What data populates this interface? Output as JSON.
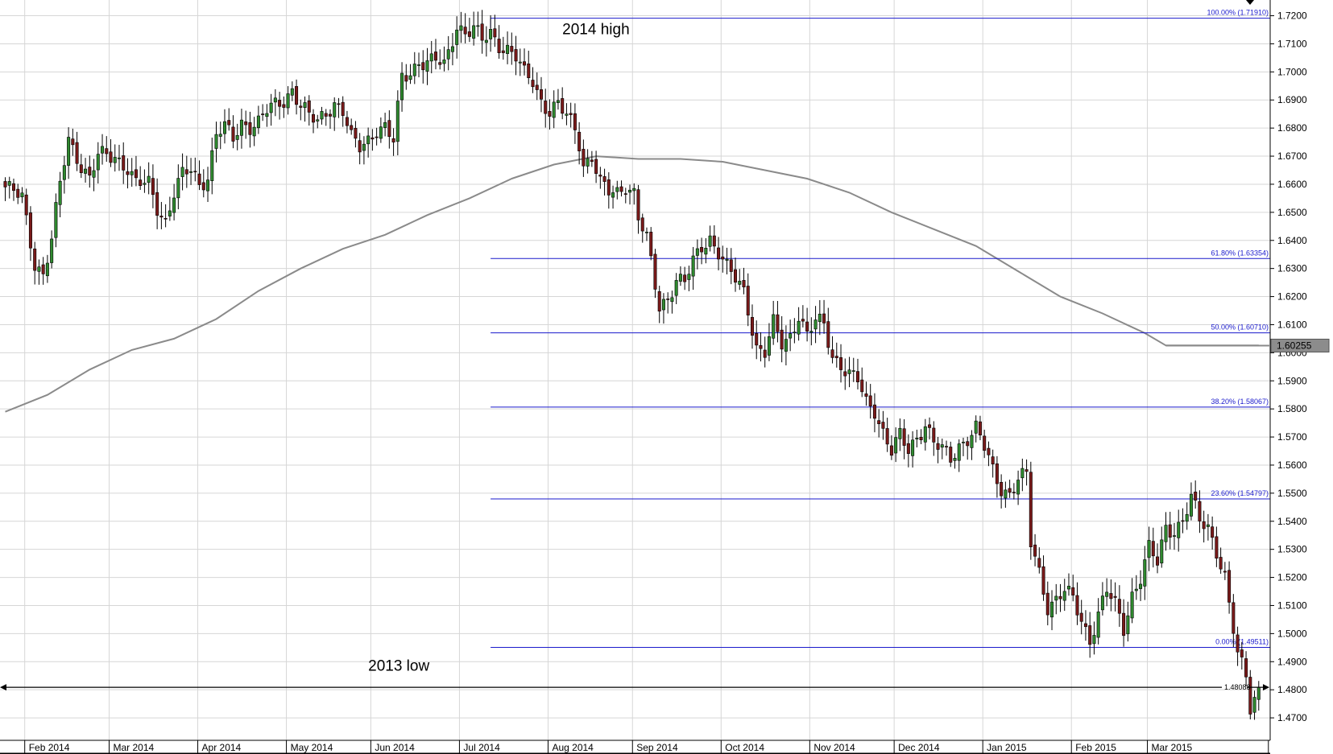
{
  "colors": {
    "bull": "#2f8a2f",
    "bear": "#7a1a1a",
    "fib": "#1a1acc",
    "ma": "#8a8a8a",
    "grid": "#d6d6d6",
    "text": "#000000"
  },
  "chart_data": {
    "type": "candlestick",
    "instrument_price_current": "1.60255",
    "ylim": [
      1.462,
      1.7256
    ],
    "y_ticks": [
      "1.4700",
      "1.4800",
      "1.4900",
      "1.5000",
      "1.5100",
      "1.5200",
      "1.5300",
      "1.5400",
      "1.5500",
      "1.5600",
      "1.5700",
      "1.5800",
      "1.5900",
      "1.6000",
      "1.6100",
      "1.6200",
      "1.6300",
      "1.6400",
      "1.6500",
      "1.6600",
      "1.6700",
      "1.6800",
      "1.6900",
      "1.7000",
      "1.7100",
      "1.7200"
    ],
    "months": [
      {
        "label": "Feb 2014",
        "index": 5
      },
      {
        "label": "Mar 2014",
        "index": 25
      },
      {
        "label": "Apr 2014",
        "index": 46
      },
      {
        "label": "May 2014",
        "index": 67
      },
      {
        "label": "Jun 2014",
        "index": 87
      },
      {
        "label": "Jul 2014",
        "index": 108
      },
      {
        "label": "Aug 2014",
        "index": 129
      },
      {
        "label": "Sep 2014",
        "index": 149
      },
      {
        "label": "Oct 2014",
        "index": 170
      },
      {
        "label": "Nov 2014",
        "index": 191
      },
      {
        "label": "Dec 2014",
        "index": 211
      },
      {
        "label": "Jan 2015",
        "index": 232
      },
      {
        "label": "Feb 2015",
        "index": 253
      },
      {
        "label": "Mar 2015",
        "index": 271
      }
    ],
    "years": [
      {
        "label": "2014",
        "index": 115
      },
      {
        "label": "2015",
        "index": 264
      }
    ],
    "fib_levels": [
      {
        "label": "100.00% (1.71910)",
        "value": 1.7191
      },
      {
        "label": "61.80% (1.63354)",
        "value": 1.63354
      },
      {
        "label": "50.00% (1.60710)",
        "value": 1.6071
      },
      {
        "label": "38.20% (1.58067)",
        "value": 1.58067
      },
      {
        "label": "23.60% (1.54797)",
        "value": 1.54797
      },
      {
        "label": "0.00% (1.49511)",
        "value": 1.49511
      }
    ],
    "fib_start_index": 115,
    "low_line": {
      "label": "1.48088",
      "value": 1.48088
    },
    "annotations": [
      {
        "text": "2014 high",
        "index": 132,
        "value": 1.7134
      },
      {
        "text": "2013 low",
        "index": 86,
        "value": 1.4868
      }
    ],
    "ma_points": [
      [
        0,
        1.579
      ],
      [
        10,
        1.585
      ],
      [
        20,
        1.594
      ],
      [
        30,
        1.601
      ],
      [
        40,
        1.605
      ],
      [
        50,
        1.612
      ],
      [
        60,
        1.622
      ],
      [
        70,
        1.63
      ],
      [
        80,
        1.637
      ],
      [
        90,
        1.642
      ],
      [
        100,
        1.649
      ],
      [
        110,
        1.655
      ],
      [
        120,
        1.662
      ],
      [
        130,
        1.667
      ],
      [
        140,
        1.67
      ],
      [
        150,
        1.669
      ],
      [
        160,
        1.669
      ],
      [
        170,
        1.668
      ],
      [
        180,
        1.665
      ],
      [
        190,
        1.662
      ],
      [
        200,
        1.657
      ],
      [
        210,
        1.65
      ],
      [
        220,
        1.644
      ],
      [
        230,
        1.638
      ],
      [
        240,
        1.629
      ],
      [
        250,
        1.62
      ],
      [
        260,
        1.614
      ],
      [
        270,
        1.607
      ],
      [
        275,
        1.6026
      ],
      [
        297,
        1.6026
      ]
    ],
    "close_anchors": [
      [
        0,
        1.659
      ],
      [
        4,
        1.655
      ],
      [
        7,
        1.632
      ],
      [
        9,
        1.628
      ],
      [
        11,
        1.64
      ],
      [
        13,
        1.66
      ],
      [
        15,
        1.676
      ],
      [
        18,
        1.667
      ],
      [
        20,
        1.662
      ],
      [
        22,
        1.67
      ],
      [
        26,
        1.67
      ],
      [
        29,
        1.666
      ],
      [
        31,
        1.66
      ],
      [
        34,
        1.66
      ],
      [
        36,
        1.652
      ],
      [
        38,
        1.647
      ],
      [
        40,
        1.657
      ],
      [
        42,
        1.663
      ],
      [
        44,
        1.665
      ],
      [
        46,
        1.66
      ],
      [
        48,
        1.663
      ],
      [
        50,
        1.678
      ],
      [
        52,
        1.68
      ],
      [
        54,
        1.676
      ],
      [
        56,
        1.682
      ],
      [
        58,
        1.681
      ],
      [
        60,
        1.682
      ],
      [
        62,
        1.686
      ],
      [
        64,
        1.688
      ],
      [
        66,
        1.69
      ],
      [
        68,
        1.694
      ],
      [
        70,
        1.688
      ],
      [
        72,
        1.684
      ],
      [
        74,
        1.682
      ],
      [
        76,
        1.686
      ],
      [
        78,
        1.689
      ],
      [
        80,
        1.686
      ],
      [
        82,
        1.676
      ],
      [
        84,
        1.673
      ],
      [
        86,
        1.676
      ],
      [
        88,
        1.68
      ],
      [
        90,
        1.68
      ],
      [
        92,
        1.675
      ],
      [
        94,
        1.698
      ],
      [
        96,
        1.7
      ],
      [
        98,
        1.704
      ],
      [
        100,
        1.703
      ],
      [
        102,
        1.704
      ],
      [
        104,
        1.702
      ],
      [
        106,
        1.712
      ],
      [
        107,
        1.717
      ],
      [
        109,
        1.714
      ],
      [
        111,
        1.715
      ],
      [
        113,
        1.711
      ],
      [
        115,
        1.714
      ],
      [
        117,
        1.71
      ],
      [
        119,
        1.708
      ],
      [
        121,
        1.705
      ],
      [
        123,
        1.699
      ],
      [
        125,
        1.697
      ],
      [
        127,
        1.69
      ],
      [
        129,
        1.686
      ],
      [
        131,
        1.688
      ],
      [
        133,
        1.684
      ],
      [
        135,
        1.68
      ],
      [
        136,
        1.675
      ],
      [
        137,
        1.667
      ],
      [
        139,
        1.67
      ],
      [
        141,
        1.66
      ],
      [
        143,
        1.657
      ],
      [
        145,
        1.657
      ],
      [
        147,
        1.66
      ],
      [
        149,
        1.657
      ],
      [
        150,
        1.648
      ],
      [
        152,
        1.64
      ],
      [
        153,
        1.632
      ],
      [
        155,
        1.616
      ],
      [
        157,
        1.62
      ],
      [
        159,
        1.626
      ],
      [
        161,
        1.625
      ],
      [
        163,
        1.632
      ],
      [
        165,
        1.638
      ],
      [
        167,
        1.641
      ],
      [
        169,
        1.636
      ],
      [
        171,
        1.63
      ],
      [
        173,
        1.626
      ],
      [
        175,
        1.622
      ],
      [
        176,
        1.616
      ],
      [
        178,
        1.602
      ],
      [
        180,
        1.6
      ],
      [
        182,
        1.61
      ],
      [
        184,
        1.603
      ],
      [
        186,
        1.606
      ],
      [
        188,
        1.614
      ],
      [
        190,
        1.606
      ],
      [
        192,
        1.611
      ],
      [
        194,
        1.61
      ],
      [
        196,
        1.599
      ],
      [
        198,
        1.596
      ],
      [
        200,
        1.592
      ],
      [
        202,
        1.59
      ],
      [
        204,
        1.582
      ],
      [
        206,
        1.58
      ],
      [
        208,
        1.572
      ],
      [
        210,
        1.565
      ],
      [
        212,
        1.57
      ],
      [
        214,
        1.565
      ],
      [
        216,
        1.57
      ],
      [
        218,
        1.575
      ],
      [
        220,
        1.568
      ],
      [
        222,
        1.565
      ],
      [
        224,
        1.562
      ],
      [
        226,
        1.567
      ],
      [
        228,
        1.57
      ],
      [
        230,
        1.573
      ],
      [
        232,
        1.566
      ],
      [
        234,
        1.558
      ],
      [
        236,
        1.552
      ],
      [
        238,
        1.55
      ],
      [
        240,
        1.555
      ],
      [
        242,
        1.556
      ],
      [
        243,
        1.532
      ],
      [
        245,
        1.522
      ],
      [
        247,
        1.51
      ],
      [
        249,
        1.512
      ],
      [
        251,
        1.515
      ],
      [
        253,
        1.512
      ],
      [
        255,
        1.505
      ],
      [
        257,
        1.498
      ],
      [
        259,
        1.507
      ],
      [
        261,
        1.515
      ],
      [
        263,
        1.51
      ],
      [
        265,
        1.502
      ],
      [
        267,
        1.514
      ],
      [
        269,
        1.52
      ],
      [
        271,
        1.53
      ],
      [
        273,
        1.525
      ],
      [
        275,
        1.538
      ],
      [
        277,
        1.537
      ],
      [
        279,
        1.54
      ],
      [
        281,
        1.548
      ],
      [
        283,
        1.54
      ],
      [
        285,
        1.538
      ],
      [
        287,
        1.53
      ],
      [
        289,
        1.52
      ],
      [
        290,
        1.51
      ],
      [
        292,
        1.492
      ],
      [
        294,
        1.485
      ],
      [
        295,
        1.474
      ],
      [
        297,
        1.4809
      ]
    ]
  }
}
